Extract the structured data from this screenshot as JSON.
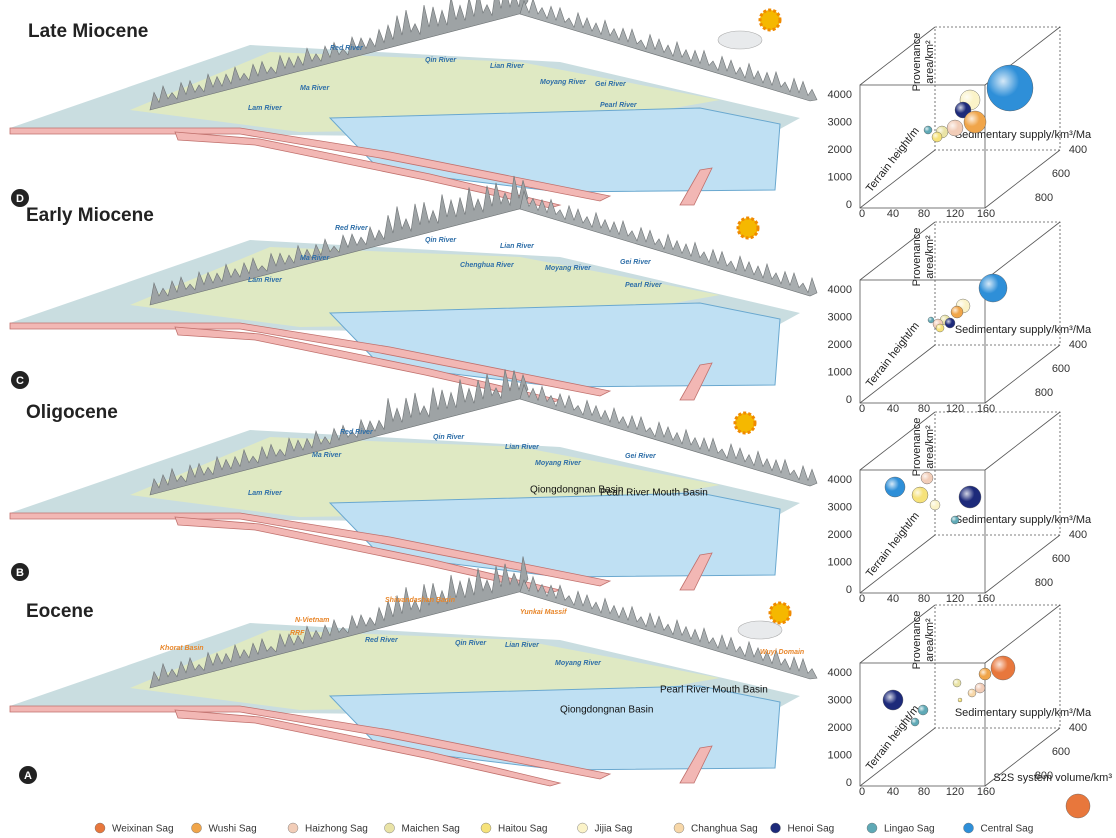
{
  "panels": [
    {
      "letter": "D",
      "title": "Late Miocene",
      "labels": [
        {
          "text": "Red River",
          "color": "#2f6fa8"
        },
        {
          "text": "Qin River",
          "color": "#2f6fa8"
        },
        {
          "text": "Lian River",
          "color": "#2f6fa8"
        },
        {
          "text": "Moyang River",
          "color": "#2f6fa8"
        },
        {
          "text": "Gei River",
          "color": "#2f6fa8"
        },
        {
          "text": "Ma River",
          "color": "#2f6fa8"
        },
        {
          "text": "Lam River",
          "color": "#2f6fa8"
        },
        {
          "text": "Pearl River",
          "color": "#2f6fa8"
        }
      ]
    },
    {
      "letter": "C",
      "title": "Early Miocene",
      "labels": [
        {
          "text": "Red River",
          "color": "#2f6fa8"
        },
        {
          "text": "Qin River",
          "color": "#2f6fa8"
        },
        {
          "text": "Lian River",
          "color": "#2f6fa8"
        },
        {
          "text": "Chenghua River",
          "color": "#2f6fa8"
        },
        {
          "text": "Moyang River",
          "color": "#2f6fa8"
        },
        {
          "text": "Gei River",
          "color": "#2f6fa8"
        },
        {
          "text": "Ma River",
          "color": "#2f6fa8"
        },
        {
          "text": "Lam River",
          "color": "#2f6fa8"
        },
        {
          "text": "Pearl River",
          "color": "#2f6fa8"
        }
      ]
    },
    {
      "letter": "B",
      "title": "Oligocene",
      "labels": [
        {
          "text": "Red River",
          "color": "#2f6fa8"
        },
        {
          "text": "Qin River",
          "color": "#2f6fa8"
        },
        {
          "text": "Lian River",
          "color": "#2f6fa8"
        },
        {
          "text": "Moyang River",
          "color": "#2f6fa8"
        },
        {
          "text": "Gei River",
          "color": "#2f6fa8"
        },
        {
          "text": "Ma River",
          "color": "#2f6fa8"
        },
        {
          "text": "Lam River",
          "color": "#2f6fa8"
        },
        {
          "text": "Qiongdongnan Basin",
          "color": "#111111"
        },
        {
          "text": "Pearl River Mouth Basin",
          "color": "#111111"
        }
      ]
    },
    {
      "letter": "A",
      "title": "Eocene",
      "labels": [
        {
          "text": "Shiwandashan Basin",
          "color": "#e8862a"
        },
        {
          "text": "N-Vietnam",
          "color": "#e8862a"
        },
        {
          "text": "RRF",
          "color": "#e8862a"
        },
        {
          "text": "Yunkai Massif",
          "color": "#e8862a"
        },
        {
          "text": "Khorat Basin",
          "color": "#e8862a"
        },
        {
          "text": "Wuyi Domain",
          "color": "#e8862a"
        },
        {
          "text": "Red River",
          "color": "#2f6fa8"
        },
        {
          "text": "Qin River",
          "color": "#2f6fa8"
        },
        {
          "text": "Lian River",
          "color": "#2f6fa8"
        },
        {
          "text": "Moyang River",
          "color": "#2f6fa8"
        },
        {
          "text": "Pearl River Mouth Basin",
          "color": "#111111"
        },
        {
          "text": "Qiongdongnan Basin",
          "color": "#111111"
        }
      ]
    }
  ],
  "axes": {
    "z_ticks": [
      "4000",
      "3000",
      "2000",
      "1000",
      "0"
    ],
    "x_ticks": [
      "0",
      "40",
      "80",
      "120",
      "160"
    ],
    "y_ticks": [
      "400",
      "600",
      "800"
    ],
    "z_title_1": "Provenance",
    "z_title_2": "area/km²",
    "x_title": "Sedimentary supply/km³/Ma",
    "y_title": "Terrain height/m"
  },
  "size_legend": "S2S system volume/km³",
  "legend": [
    {
      "name": "Weixinan Sag",
      "color": "#e8773c"
    },
    {
      "name": "Wushi Sag",
      "color": "#f0a54a"
    },
    {
      "name": "Haizhong Sag",
      "color": "#f2cdb8"
    },
    {
      "name": "Maichen Sag",
      "color": "#e9e3a6"
    },
    {
      "name": "Haitou Sag",
      "color": "#f6e27a"
    },
    {
      "name": "Jijia Sag",
      "color": "#fbf3c8"
    },
    {
      "name": "Changhua Sag",
      "color": "#f7d7a8"
    },
    {
      "name": "Henoi Sag",
      "color": "#1d2a7a"
    },
    {
      "name": "Lingao Sag",
      "color": "#5fa9b6"
    },
    {
      "name": "Central Sag",
      "color": "#2e8fd8"
    }
  ]
}
